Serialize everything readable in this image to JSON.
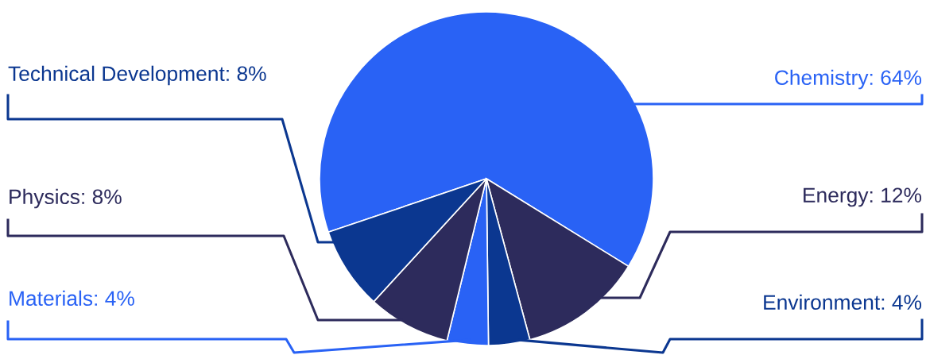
{
  "chart_data": {
    "type": "pie",
    "categories": [
      "Chemistry",
      "Energy",
      "Environment",
      "Materials",
      "Physics",
      "Technical Development"
    ],
    "values": [
      64,
      12,
      4,
      4,
      8,
      8
    ],
    "value_labels": [
      "64%",
      "12%",
      "4%",
      "4%",
      "8%",
      "8%"
    ],
    "colors": [
      "#2962f5",
      "#2d2b5c",
      "#0b3790",
      "#2962f5",
      "#2d2b5c",
      "#0b3790"
    ],
    "legend": false
  }
}
